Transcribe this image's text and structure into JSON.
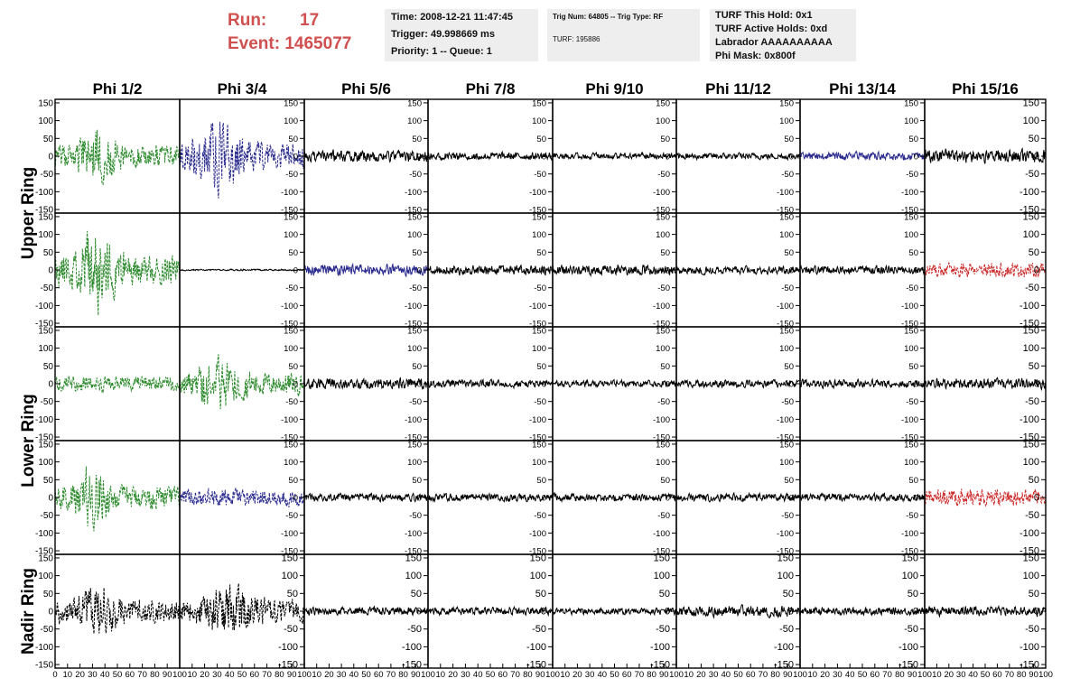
{
  "header": {
    "run_label": "Run:",
    "run_value": "17",
    "event_label": "Event:",
    "event_value": "1465077"
  },
  "info_box_1": {
    "time": "Time: 2008-12-21 11:47:45",
    "trigger": "Trigger: 49.998669 ms",
    "priority": "Priority: 1 -- Queue: 1"
  },
  "info_box_2": {
    "trig": "Trig Num: 64805 -- Trig Type: RF",
    "turf": "TURF: 195886"
  },
  "info_box_3": {
    "hold": "TURF This Hold: 0x1",
    "active": "TURF Active Holds: 0xd",
    "labrador": "Labrador AAAAAAAAAA",
    "mask": "Phi Mask: 0x800f"
  },
  "chart_data": {
    "type": "line",
    "columns": [
      "Phi 1/2",
      "Phi 3/4",
      "Phi 5/6",
      "Phi 7/8",
      "Phi 9/10",
      "Phi 11/12",
      "Phi 13/14",
      "Phi 15/16"
    ],
    "row_groups": [
      {
        "label": "Upper Ring",
        "rows": [
          0,
          1
        ]
      },
      {
        "label": "Lower Ring",
        "rows": [
          2,
          3
        ]
      },
      {
        "label": "Nadir Ring",
        "rows": [
          4
        ]
      }
    ],
    "xlim": [
      0,
      100
    ],
    "ylim": [
      -160,
      160
    ],
    "x_ticks": [
      0,
      10,
      20,
      30,
      40,
      50,
      60,
      70,
      80,
      90,
      100
    ],
    "x_tick_labels_first": [
      "0",
      "10",
      "20",
      "30",
      "40",
      "50",
      "60",
      "70",
      "80",
      "90",
      "100"
    ],
    "x_tick_labels_other": [
      "10",
      "20",
      "30",
      "40",
      "50",
      "60",
      "70",
      "80",
      "90",
      "100"
    ],
    "y_ticks": [
      150,
      100,
      50,
      0,
      -50,
      -100,
      -150
    ],
    "y_tick_labels": [
      "150",
      "100",
      "50",
      "0",
      "-50",
      "-100",
      "-150"
    ],
    "colors": {
      "green": "#2e8b2e",
      "blue": "#2b2b8f",
      "red": "#cc2a2a",
      "black": "#000000",
      "frame": "#000000"
    },
    "channels": [
      [
        {
          "color": "green",
          "dashed": true,
          "amp": 40,
          "burst": {
            "center": 33,
            "width": 15,
            "gain": 1.3
          },
          "seed": 1
        },
        {
          "color": "blue",
          "dashed": true,
          "amp": 50,
          "burst": {
            "center": 32,
            "width": 18,
            "gain": 1.6
          },
          "seed": 2
        },
        {
          "color": "black",
          "dashed": false,
          "amp": 22,
          "seed": 3
        },
        {
          "color": "black",
          "dashed": false,
          "amp": 14,
          "seed": 4
        },
        {
          "color": "black",
          "dashed": false,
          "amp": 12,
          "seed": 5
        },
        {
          "color": "black",
          "dashed": false,
          "amp": 12,
          "seed": 6
        },
        {
          "color": "blue",
          "dashed": false,
          "amp": 15,
          "seed": 7
        },
        {
          "color": "black",
          "dashed": false,
          "amp": 24,
          "seed": 8
        }
      ],
      [
        {
          "color": "green",
          "dashed": true,
          "amp": 55,
          "burst": {
            "center": 33,
            "width": 14,
            "gain": 1.9
          },
          "seed": 11
        },
        {
          "color": "black",
          "dashed": false,
          "amp": 3,
          "seed": 12
        },
        {
          "color": "blue",
          "dashed": false,
          "amp": 20,
          "seed": 13
        },
        {
          "color": "black",
          "dashed": false,
          "amp": 18,
          "seed": 14
        },
        {
          "color": "black",
          "dashed": false,
          "amp": 18,
          "seed": 15
        },
        {
          "color": "black",
          "dashed": false,
          "amp": 15,
          "seed": 16
        },
        {
          "color": "black",
          "dashed": false,
          "amp": 15,
          "seed": 17
        },
        {
          "color": "red",
          "dashed": true,
          "amp": 25,
          "seed": 18
        }
      ],
      [
        {
          "color": "green",
          "dashed": true,
          "amp": 28,
          "seed": 21
        },
        {
          "color": "green",
          "dashed": true,
          "amp": 40,
          "burst": {
            "center": 33,
            "width": 18,
            "gain": 1.4
          },
          "seed": 22
        },
        {
          "color": "black",
          "dashed": false,
          "amp": 20,
          "seed": 23
        },
        {
          "color": "black",
          "dashed": false,
          "amp": 14,
          "seed": 24
        },
        {
          "color": "black",
          "dashed": false,
          "amp": 12,
          "seed": 25
        },
        {
          "color": "black",
          "dashed": false,
          "amp": 14,
          "seed": 26
        },
        {
          "color": "black",
          "dashed": false,
          "amp": 15,
          "seed": 27
        },
        {
          "color": "black",
          "dashed": false,
          "amp": 20,
          "seed": 28
        }
      ],
      [
        {
          "color": "green",
          "dashed": true,
          "amp": 40,
          "burst": {
            "center": 30,
            "width": 14,
            "gain": 1.8
          },
          "seed": 31
        },
        {
          "color": "blue",
          "dashed": true,
          "amp": 30,
          "seed": 32
        },
        {
          "color": "black",
          "dashed": false,
          "amp": 14,
          "seed": 33
        },
        {
          "color": "black",
          "dashed": false,
          "amp": 14,
          "seed": 34
        },
        {
          "color": "black",
          "dashed": false,
          "amp": 14,
          "seed": 35
        },
        {
          "color": "black",
          "dashed": false,
          "amp": 14,
          "seed": 36
        },
        {
          "color": "black",
          "dashed": false,
          "amp": 14,
          "seed": 37
        },
        {
          "color": "red",
          "dashed": true,
          "amp": 30,
          "seed": 38
        }
      ],
      [
        {
          "color": "black",
          "dashed": true,
          "amp": 40,
          "burst": {
            "center": 35,
            "width": 18,
            "gain": 1.3
          },
          "seed": 41
        },
        {
          "color": "black",
          "dashed": true,
          "amp": 40,
          "burst": {
            "center": 40,
            "width": 20,
            "gain": 1.4
          },
          "seed": 42
        },
        {
          "color": "black",
          "dashed": false,
          "amp": 15,
          "seed": 43
        },
        {
          "color": "black",
          "dashed": false,
          "amp": 14,
          "seed": 44
        },
        {
          "color": "black",
          "dashed": false,
          "amp": 12,
          "seed": 45
        },
        {
          "color": "black",
          "dashed": false,
          "amp": 20,
          "seed": 46
        },
        {
          "color": "black",
          "dashed": false,
          "amp": 14,
          "seed": 47
        },
        {
          "color": "black",
          "dashed": false,
          "amp": 18,
          "seed": 48
        }
      ]
    ]
  }
}
